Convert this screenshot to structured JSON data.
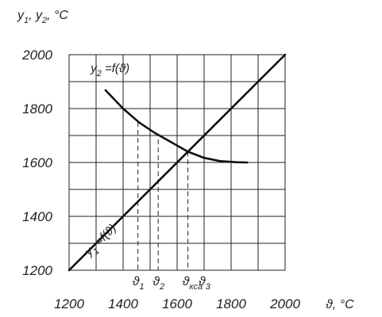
{
  "chart_data": {
    "type": "line",
    "x_ticks": [
      "1200",
      "1400",
      "1600",
      "1800",
      "2000"
    ],
    "y_ticks": [
      "1200",
      "1400",
      "1600",
      "1800",
      "2000"
    ],
    "xlim": [
      1200,
      2000
    ],
    "ylim": [
      1200,
      2000
    ],
    "grid": true,
    "x_axis_symbol": "ϑ, °C",
    "y_axis_label": {
      "a": "y",
      "a_sub": "1",
      "sep": ",  ",
      "b": "y",
      "b_sub": "2",
      "unit": ", °C"
    },
    "series": [
      {
        "label_main": "y",
        "label_sub": "1",
        "label_rest": " =f(ϑ)",
        "points": [
          [
            1200,
            1200
          ],
          [
            2000,
            2000
          ]
        ]
      },
      {
        "label_main": "y",
        "label_sub": "2",
        "label_rest": " =f(ϑ)",
        "points": [
          [
            1335,
            1868
          ],
          [
            1400,
            1800
          ],
          [
            1460,
            1748
          ],
          [
            1520,
            1708
          ],
          [
            1580,
            1674
          ],
          [
            1640,
            1640
          ],
          [
            1700,
            1617
          ],
          [
            1760,
            1605
          ],
          [
            1820,
            1601
          ],
          [
            1860,
            1600
          ]
        ]
      }
    ],
    "markers": [
      {
        "x": 1455,
        "y": 1750,
        "main": "ϑ",
        "sub": "1"
      },
      {
        "x": 1530,
        "y": 1685,
        "main": "ϑ",
        "sub": "2"
      },
      {
        "x": 1640,
        "y": 1640,
        "main": "ϑ",
        "sub": "кса"
      },
      {
        "x": 1700,
        "y": 1617,
        "main": "ϑ",
        "sub": "3"
      }
    ]
  }
}
